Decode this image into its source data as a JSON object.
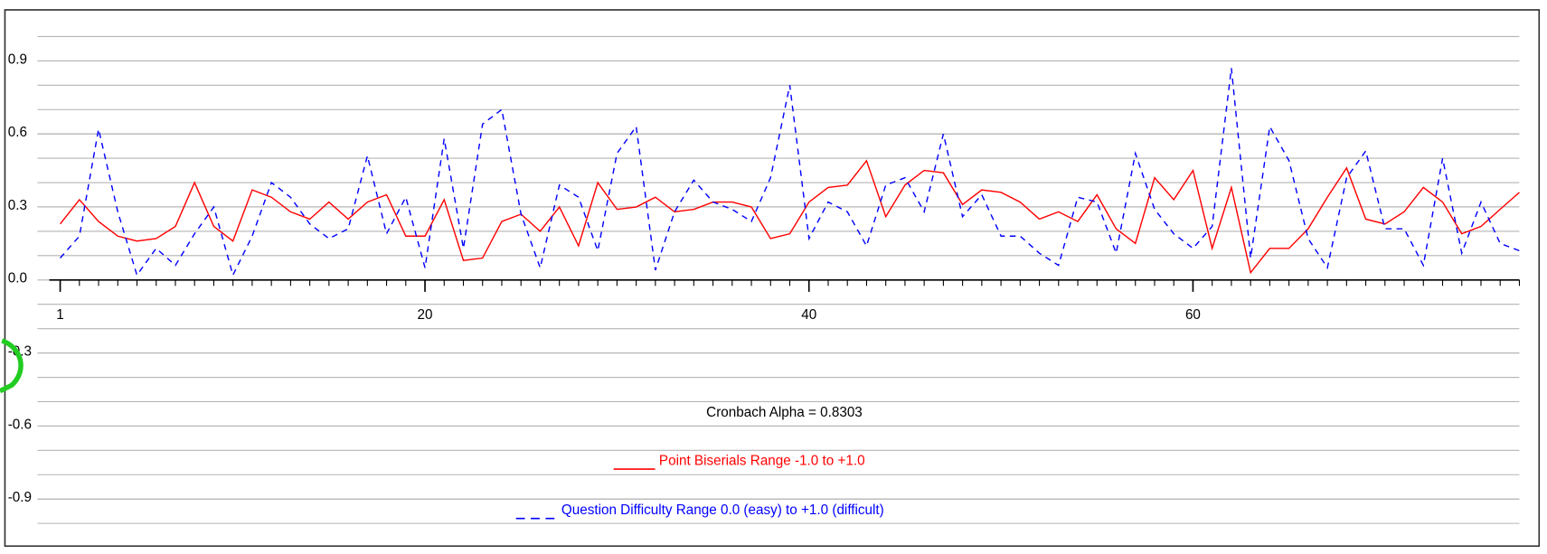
{
  "chart_data": {
    "type": "line",
    "annotation": "Cronbach Alpha = 0.8303",
    "x": [
      1,
      2,
      3,
      4,
      5,
      6,
      7,
      8,
      9,
      10,
      11,
      12,
      13,
      14,
      15,
      16,
      17,
      18,
      19,
      20,
      21,
      22,
      23,
      24,
      25,
      26,
      27,
      28,
      29,
      30,
      31,
      32,
      33,
      34,
      35,
      36,
      37,
      38,
      39,
      40,
      41,
      42,
      43,
      44,
      45,
      46,
      47,
      48,
      49,
      50,
      51,
      52,
      53,
      54,
      55,
      56,
      57,
      58,
      59,
      60,
      61,
      62,
      63,
      64,
      65,
      66,
      67,
      68,
      69,
      70,
      71,
      72,
      73,
      74,
      75,
      76,
      77
    ],
    "series": [
      {
        "name": "Point Biserials Range -1.0 to +1.0",
        "color": "#ff0000",
        "dash": false,
        "values": [
          0.23,
          0.33,
          0.24,
          0.18,
          0.16,
          0.17,
          0.22,
          0.4,
          0.22,
          0.16,
          0.37,
          0.34,
          0.28,
          0.25,
          0.32,
          0.25,
          0.32,
          0.35,
          0.18,
          0.18,
          0.33,
          0.08,
          0.09,
          0.24,
          0.27,
          0.2,
          0.3,
          0.14,
          0.4,
          0.29,
          0.3,
          0.34,
          0.28,
          0.29,
          0.32,
          0.32,
          0.3,
          0.17,
          0.19,
          0.32,
          0.38,
          0.39,
          0.49,
          0.26,
          0.39,
          0.45,
          0.44,
          0.31,
          0.37,
          0.36,
          0.32,
          0.25,
          0.28,
          0.24,
          0.35,
          0.21,
          0.15,
          0.42,
          0.33,
          0.45,
          0.13,
          0.38,
          0.03,
          0.13,
          0.13,
          0.21,
          0.34,
          0.46,
          0.25,
          0.23,
          0.28,
          0.38,
          0.32,
          0.19,
          0.22,
          0.29,
          0.36
        ]
      },
      {
        "name": "Question Difficulty Range 0.0 (easy) to +1.0 (difficult)",
        "color": "#0000ff",
        "dash": true,
        "values": [
          0.09,
          0.18,
          0.62,
          0.28,
          0.02,
          0.13,
          0.06,
          0.19,
          0.3,
          0.02,
          0.18,
          0.4,
          0.34,
          0.23,
          0.17,
          0.21,
          0.51,
          0.19,
          0.34,
          0.05,
          0.58,
          0.13,
          0.64,
          0.7,
          0.27,
          0.05,
          0.39,
          0.34,
          0.12,
          0.52,
          0.63,
          0.04,
          0.28,
          0.41,
          0.32,
          0.29,
          0.24,
          0.42,
          0.8,
          0.17,
          0.32,
          0.28,
          0.14,
          0.39,
          0.42,
          0.28,
          0.6,
          0.26,
          0.35,
          0.18,
          0.18,
          0.11,
          0.06,
          0.34,
          0.32,
          0.11,
          0.52,
          0.29,
          0.19,
          0.13,
          0.22,
          0.87,
          0.09,
          0.63,
          0.49,
          0.17,
          0.05,
          0.42,
          0.53,
          0.21,
          0.21,
          0.06,
          0.5,
          0.11,
          0.32,
          0.15,
          0.12
        ]
      }
    ],
    "xlim": [
      1,
      77
    ],
    "xticks": [
      1,
      20,
      40,
      60
    ],
    "xminor_ticks": [
      1,
      2,
      3,
      4,
      5,
      6,
      7,
      8,
      9,
      10,
      11,
      12,
      13,
      14,
      15,
      16,
      17,
      18,
      19,
      20,
      21,
      22,
      23,
      24,
      25,
      26,
      27,
      28,
      29,
      30,
      31,
      32,
      33,
      34,
      35,
      36,
      37,
      38,
      39,
      40,
      41,
      42,
      43,
      44,
      45,
      46,
      47,
      48,
      49,
      50,
      51,
      52,
      53,
      54,
      55,
      56,
      57,
      58,
      59,
      60,
      61,
      62,
      63,
      64,
      65,
      66,
      67,
      68,
      69,
      70,
      71,
      72,
      73,
      74,
      75,
      76,
      77
    ],
    "ylim": [
      -1.0,
      1.0
    ],
    "yticks": [
      0.9,
      0.6,
      0.3,
      {
        "value": 0,
        "label": "0.0"
      },
      -0.3,
      -0.6,
      -0.9
    ],
    "ygridlines": [
      1.0,
      0.9,
      0.8,
      0.7,
      0.6,
      0.5,
      0.4,
      0.3,
      0.2,
      0.1,
      -0.1,
      -0.2,
      -0.3,
      -0.4,
      -0.5,
      -0.6,
      -0.7,
      -0.8,
      -0.9,
      -1.0
    ],
    "grid": true
  }
}
